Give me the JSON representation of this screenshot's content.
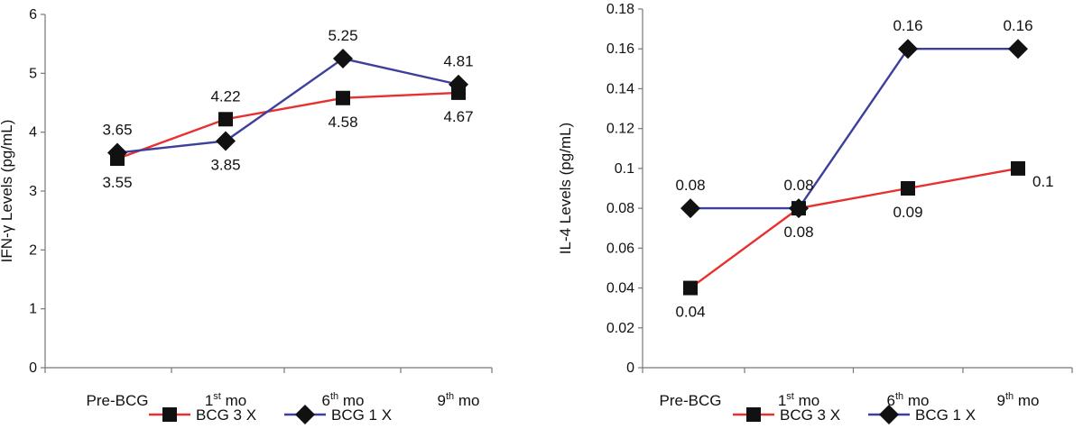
{
  "chart_data": [
    {
      "type": "line",
      "ylabel": "IFN-γ Levels (pg/mL)",
      "xlabel": "",
      "ylim": [
        0,
        6
      ],
      "yticks": [
        "0",
        "1",
        "2",
        "3",
        "4",
        "5",
        "6"
      ],
      "grid": false,
      "categories": [
        {
          "base": "Pre-BCG",
          "sup": "",
          "suffix": ""
        },
        {
          "base": "1",
          "sup": "st",
          "suffix": " mo"
        },
        {
          "base": "6",
          "sup": "th",
          "suffix": " mo"
        },
        {
          "base": "9",
          "sup": "th",
          "suffix": " mo"
        }
      ],
      "series": [
        {
          "name": "BCG 3 X",
          "color": "#e8302f",
          "marker": "square",
          "values": [
            3.55,
            4.22,
            4.58,
            4.67
          ],
          "labels": [
            "3.55",
            "4.22",
            "4.58",
            "4.67"
          ],
          "label_positions": [
            "below",
            "above",
            "below",
            "below"
          ]
        },
        {
          "name": "BCG 1 X",
          "color": "#3d3f9c",
          "marker": "diamond",
          "values": [
            3.65,
            3.85,
            5.25,
            4.81
          ],
          "labels": [
            "3.65",
            "3.85",
            "5.25",
            "4.81"
          ],
          "label_positions": [
            "above",
            "below",
            "above",
            "above"
          ]
        }
      ],
      "legend_position": "bottom"
    },
    {
      "type": "line",
      "ylabel": "IL-4 Levels (pg/mL)",
      "xlabel": "",
      "ylim": [
        0,
        0.18
      ],
      "yticks": [
        "0",
        "0.02",
        "0.04",
        "0.06",
        "0.08",
        "0.1",
        "0.12",
        "0.14",
        "0.16",
        "0.18"
      ],
      "grid": false,
      "categories": [
        {
          "base": "Pre-BCG",
          "sup": "",
          "suffix": ""
        },
        {
          "base": "1",
          "sup": "st",
          "suffix": " mo"
        },
        {
          "base": "6",
          "sup": "th",
          "suffix": " mo"
        },
        {
          "base": "9",
          "sup": "th",
          "suffix": " mo"
        }
      ],
      "series": [
        {
          "name": "BCG 3 X",
          "color": "#e8302f",
          "marker": "square",
          "values": [
            0.04,
            0.08,
            0.09,
            0.1
          ],
          "labels": [
            "0.04",
            "0.08",
            "0.09",
            "0.1"
          ],
          "label_positions": [
            "below",
            "below",
            "below",
            "right"
          ]
        },
        {
          "name": "BCG 1 X",
          "color": "#3d3f9c",
          "marker": "diamond",
          "values": [
            0.08,
            0.08,
            0.16,
            0.16
          ],
          "labels": [
            "0.08",
            "0.08",
            "0.16",
            "0.16"
          ],
          "label_positions": [
            "above",
            "above",
            "above",
            "above"
          ]
        }
      ],
      "legend_position": "bottom"
    }
  ]
}
